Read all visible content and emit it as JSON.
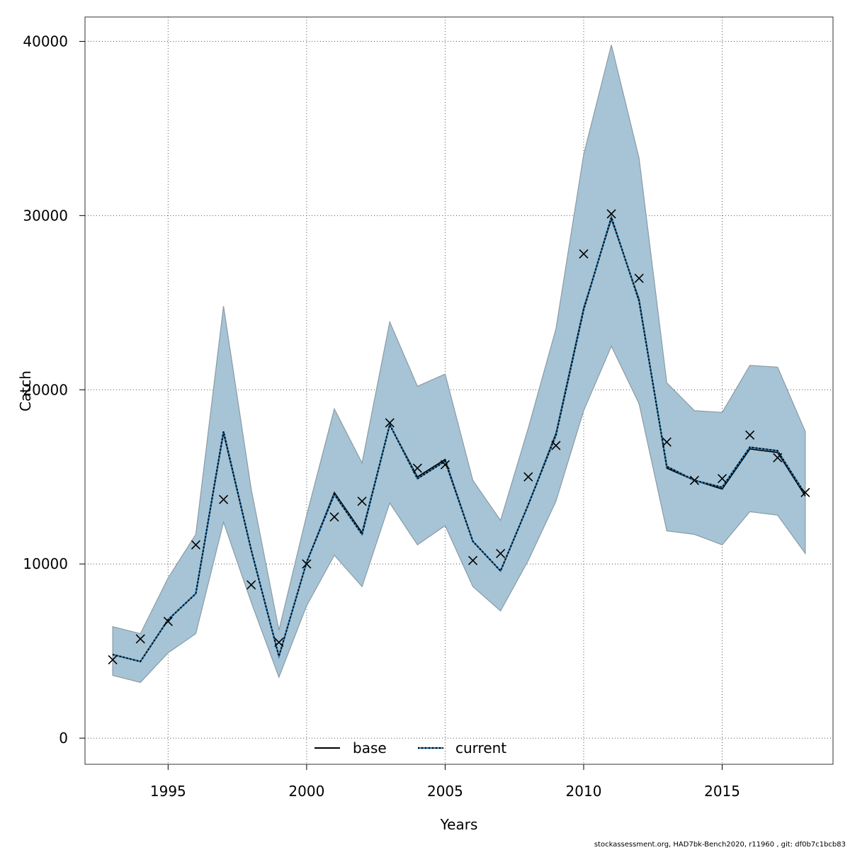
{
  "chart_data": {
    "type": "line",
    "xlabel": "Years",
    "ylabel": "Catch",
    "xlim": [
      1992,
      2019
    ],
    "ylim": [
      -1500,
      41400
    ],
    "x_ticks": [
      1995,
      2000,
      2005,
      2010,
      2015
    ],
    "y_ticks": [
      0,
      10000,
      20000,
      30000,
      40000
    ],
    "grid": true,
    "legend_position": "bottom-center",
    "x": [
      1993,
      1994,
      1995,
      1996,
      1997,
      1998,
      1999,
      2000,
      2001,
      2002,
      2003,
      2004,
      2005,
      2006,
      2007,
      2008,
      2009,
      2010,
      2011,
      2012,
      2013,
      2014,
      2015,
      2016,
      2017,
      2018
    ],
    "band": {
      "color": "#a6c4d5",
      "lower": [
        3600,
        3200,
        4900,
        6000,
        12400,
        7800,
        3500,
        7600,
        10500,
        8700,
        13500,
        11100,
        12200,
        8700,
        7300,
        10200,
        13600,
        18800,
        22500,
        19200,
        11900,
        11700,
        11100,
        13000,
        12800,
        10600
      ],
      "upper": [
        6400,
        6000,
        9200,
        11700,
        24800,
        14300,
        6200,
        12800,
        18900,
        15800,
        23900,
        20200,
        20900,
        14800,
        12500,
        17800,
        23500,
        33500,
        39800,
        33300,
        20400,
        18800,
        18700,
        21400,
        21300,
        17600
      ]
    },
    "series": [
      {
        "name": "base",
        "style": "solid",
        "color": "#000000",
        "values": [
          4800,
          4400,
          6800,
          8300,
          17500,
          10800,
          4700,
          10100,
          14100,
          11800,
          18000,
          15000,
          16000,
          11300,
          9600,
          13400,
          17500,
          24700,
          29800,
          25200,
          15500,
          14800,
          14300,
          16600,
          16400,
          13900
        ]
      },
      {
        "name": "current",
        "style": "dotted",
        "color": "#1f6fa8",
        "values": [
          4800,
          4400,
          6800,
          8300,
          17600,
          10800,
          4700,
          10100,
          14000,
          11700,
          18000,
          14900,
          15900,
          11300,
          9600,
          13400,
          17400,
          24600,
          29900,
          25100,
          15600,
          14800,
          14400,
          16700,
          16500,
          14000
        ]
      }
    ],
    "observations": [
      4500,
      5700,
      6700,
      11100,
      13700,
      8800,
      5500,
      10000,
      12700,
      13600,
      18100,
      15500,
      15700,
      10200,
      10600,
      15000,
      16800,
      27800,
      30100,
      26400,
      17000,
      14800,
      14900,
      17400,
      16100,
      14100
    ]
  },
  "footer": "stockassessment.org, HAD7bk-Bench2020, r11960 , git: df0b7c1bcb83"
}
